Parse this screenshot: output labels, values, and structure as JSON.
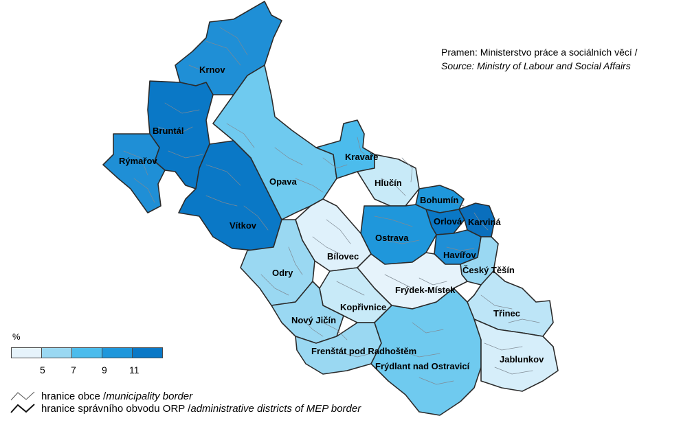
{
  "source": {
    "cz": "Pramen: Ministerstvo práce a sociálních věcí /",
    "en": "Source: Ministry of Labour and Social Affairs"
  },
  "legend": {
    "unit": "%",
    "classes": [
      {
        "color": "#e6f3fb"
      },
      {
        "color": "#9ad8f2"
      },
      {
        "color": "#4cbcec"
      },
      {
        "color": "#1f97db"
      },
      {
        "color": "#0a78c6"
      }
    ],
    "ticks": [
      "5",
      "7",
      "9",
      "11"
    ],
    "municipality_border": {
      "cz": "hranice obce / ",
      "en": "municipality border"
    },
    "district_border": {
      "cz": "hranice správního obvodu ORP / ",
      "en": "administrative districts of MEP border"
    }
  },
  "regions": [
    {
      "name": "Krnov",
      "color": "#1f8fd6"
    },
    {
      "name": "Bruntál",
      "color": "#0a78c6"
    },
    {
      "name": "Rýmařov",
      "color": "#1f8fd6"
    },
    {
      "name": "Vítkov",
      "color": "#0a78c6"
    },
    {
      "name": "Opava",
      "color": "#6fcaef"
    },
    {
      "name": "Kravaře",
      "color": "#4cbcec"
    },
    {
      "name": "Hlučín",
      "color": "#c8eaf8"
    },
    {
      "name": "Bohumín",
      "color": "#1f97db"
    },
    {
      "name": "Orlová",
      "color": "#0a78c6"
    },
    {
      "name": "Karviná",
      "color": "#0a6fbd"
    },
    {
      "name": "Ostrava",
      "color": "#1f97db"
    },
    {
      "name": "Havířov",
      "color": "#1f8fd6"
    },
    {
      "name": "Český Těšín",
      "color": "#9ad8f2"
    },
    {
      "name": "Bílovec",
      "color": "#dff1fb"
    },
    {
      "name": "Odry",
      "color": "#9ad8f2"
    },
    {
      "name": "Frýdek-Místek",
      "color": "#e6f3fb"
    },
    {
      "name": "Kopřivnice",
      "color": "#c8eaf8"
    },
    {
      "name": "Nový Jičín",
      "color": "#9ad8f2"
    },
    {
      "name": "Třinec",
      "color": "#bde5f7"
    },
    {
      "name": "Frenštát pod Radhoštěm",
      "color": "#9ad8f2"
    },
    {
      "name": "Frýdlant nad Ostravicí",
      "color": "#6fcaef"
    },
    {
      "name": "Jablunkov",
      "color": "#d6eefa"
    }
  ]
}
